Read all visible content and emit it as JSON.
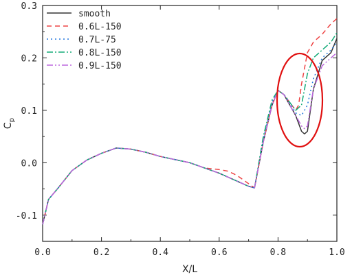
{
  "chart_data": {
    "type": "line",
    "xlabel": "X/L",
    "ylabel_main": "C",
    "ylabel_sub": "p",
    "xlim": [
      0.0,
      1.0
    ],
    "ylim": [
      -0.15,
      0.3
    ],
    "x_ticks": [
      0.0,
      0.2,
      0.4,
      0.6,
      0.8,
      1.0
    ],
    "x_tick_labels": [
      "0.0",
      "0.2",
      "0.4",
      "0.6",
      "0.8",
      "1.0"
    ],
    "y_ticks": [
      -0.1,
      0.0,
      0.1,
      0.2,
      0.3
    ],
    "y_tick_labels": [
      "-0.1",
      "0.0",
      "0.1",
      "0.2",
      "0.3"
    ],
    "grid": false,
    "legend_position": "top-left",
    "annotation": "red ellipse highlighting region near X/L 0.82-0.94",
    "annotation_color": "#e01010",
    "series": [
      {
        "name": "smooth",
        "color": "#333333",
        "dash": "solid",
        "x": [
          0.0,
          0.02,
          0.05,
          0.1,
          0.15,
          0.2,
          0.25,
          0.3,
          0.35,
          0.4,
          0.5,
          0.6,
          0.7,
          0.72,
          0.75,
          0.78,
          0.8,
          0.82,
          0.84,
          0.86,
          0.88,
          0.89,
          0.9,
          0.92,
          0.95,
          0.98,
          1.0
        ],
        "y": [
          -0.118,
          -0.07,
          -0.05,
          -0.015,
          0.005,
          0.018,
          0.028,
          0.026,
          0.02,
          0.012,
          0.0,
          -0.02,
          -0.045,
          -0.048,
          0.04,
          0.11,
          0.138,
          0.13,
          0.11,
          0.09,
          0.06,
          0.055,
          0.06,
          0.14,
          0.195,
          0.21,
          0.237
        ]
      },
      {
        "name": "0.6L-150",
        "color": "#ee4444",
        "dash": "7,5",
        "x": [
          0.0,
          0.02,
          0.05,
          0.1,
          0.15,
          0.2,
          0.25,
          0.3,
          0.35,
          0.4,
          0.5,
          0.55,
          0.6,
          0.63,
          0.66,
          0.7,
          0.72,
          0.75,
          0.78,
          0.8,
          0.82,
          0.84,
          0.86,
          0.87,
          0.88,
          0.9,
          0.92,
          0.95,
          0.98,
          1.0
        ],
        "y": [
          -0.118,
          -0.07,
          -0.05,
          -0.015,
          0.005,
          0.018,
          0.028,
          0.026,
          0.02,
          0.012,
          0.0,
          -0.01,
          -0.013,
          -0.016,
          -0.024,
          -0.04,
          -0.048,
          0.04,
          0.11,
          0.138,
          0.13,
          0.115,
          0.1,
          0.11,
          0.15,
          0.21,
          0.23,
          0.245,
          0.265,
          0.275
        ]
      },
      {
        "name": "0.7L-75",
        "color": "#2277dd",
        "dash": "2,4",
        "x": [
          0.0,
          0.02,
          0.05,
          0.1,
          0.15,
          0.2,
          0.25,
          0.3,
          0.35,
          0.4,
          0.5,
          0.6,
          0.7,
          0.72,
          0.75,
          0.78,
          0.8,
          0.82,
          0.84,
          0.86,
          0.88,
          0.9,
          0.92,
          0.95,
          0.98,
          1.0
        ],
        "y": [
          -0.118,
          -0.07,
          -0.05,
          -0.015,
          0.005,
          0.018,
          0.028,
          0.026,
          0.02,
          0.012,
          0.0,
          -0.02,
          -0.045,
          -0.048,
          0.045,
          0.115,
          0.138,
          0.13,
          0.115,
          0.095,
          0.09,
          0.11,
          0.16,
          0.2,
          0.215,
          0.23
        ]
      },
      {
        "name": "0.8L-150",
        "color": "#11aa77",
        "dash": "9,3,2,3",
        "x": [
          0.0,
          0.02,
          0.05,
          0.1,
          0.15,
          0.2,
          0.25,
          0.3,
          0.35,
          0.4,
          0.5,
          0.6,
          0.7,
          0.72,
          0.75,
          0.78,
          0.8,
          0.82,
          0.84,
          0.86,
          0.88,
          0.9,
          0.92,
          0.95,
          0.98,
          1.0
        ],
        "y": [
          -0.118,
          -0.07,
          -0.05,
          -0.015,
          0.005,
          0.018,
          0.028,
          0.026,
          0.02,
          0.012,
          0.0,
          -0.02,
          -0.045,
          -0.048,
          0.05,
          0.12,
          0.138,
          0.13,
          0.115,
          0.1,
          0.11,
          0.17,
          0.2,
          0.215,
          0.23,
          0.248
        ]
      },
      {
        "name": "0.9L-150",
        "color": "#bb66dd",
        "dash": "9,3,2,3,2,3",
        "x": [
          0.0,
          0.02,
          0.05,
          0.1,
          0.15,
          0.2,
          0.25,
          0.3,
          0.35,
          0.4,
          0.5,
          0.6,
          0.7,
          0.72,
          0.75,
          0.78,
          0.8,
          0.82,
          0.84,
          0.86,
          0.88,
          0.89,
          0.9,
          0.92,
          0.95,
          0.98,
          1.0
        ],
        "y": [
          -0.118,
          -0.07,
          -0.05,
          -0.015,
          0.005,
          0.018,
          0.028,
          0.026,
          0.02,
          0.012,
          0.0,
          -0.02,
          -0.045,
          -0.048,
          0.04,
          0.11,
          0.138,
          0.13,
          0.11,
          0.09,
          0.07,
          0.065,
          0.07,
          0.14,
          0.185,
          0.2,
          0.21
        ]
      }
    ]
  }
}
